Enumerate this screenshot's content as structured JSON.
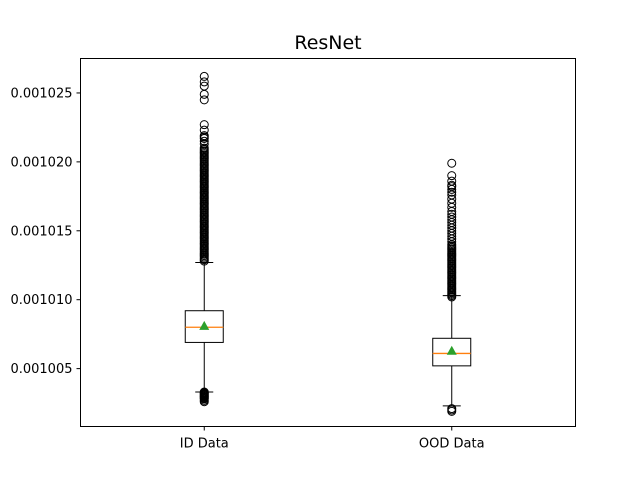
{
  "chart_data": {
    "type": "box",
    "title": "ResNet",
    "xlabel": "",
    "ylabel": "",
    "categories": [
      "ID Data",
      "OOD Data"
    ],
    "ylim": [
      0.0010008,
      0.0010275
    ],
    "yticks": [
      0.001005,
      0.00101,
      0.001015,
      0.00102,
      0.001025
    ],
    "ytick_labels": [
      "0.001005",
      "0.001010",
      "0.001015",
      "0.001020",
      "0.001025"
    ],
    "grid": false,
    "legend": "none",
    "colors": {
      "box": "#000000",
      "median": "#ff7f0e",
      "mean": "#2ca02c",
      "whisker": "#000000",
      "flier": "#000000"
    },
    "boxes": [
      {
        "label": "ID Data",
        "whisker_low": 0.0010033,
        "q1": 0.0010069,
        "median": 0.001008,
        "q3": 0.0010092,
        "whisker_high": 0.0010127,
        "mean": 0.0010081,
        "fliers_low": [
          0.0010033,
          0.00100325,
          0.0010032,
          0.00100315,
          0.0010031,
          0.00100305,
          0.001003,
          0.00100295,
          0.0010029,
          0.00100285,
          0.0010028,
          0.0010027,
          0.0010026
        ],
        "fliers_high": [
          0.0010128,
          0.0010129,
          0.001013,
          0.0010131,
          0.0010132,
          0.0010133,
          0.0010134,
          0.0010135,
          0.0010136,
          0.0010137,
          0.0010138,
          0.0010139,
          0.001014,
          0.0010141,
          0.0010142,
          0.0010143,
          0.0010144,
          0.0010145,
          0.0010146,
          0.0010147,
          0.0010148,
          0.0010149,
          0.001015,
          0.0010151,
          0.0010152,
          0.0010153,
          0.0010154,
          0.0010155,
          0.0010156,
          0.0010157,
          0.0010158,
          0.0010159,
          0.001016,
          0.0010161,
          0.0010162,
          0.0010163,
          0.0010164,
          0.0010165,
          0.0010166,
          0.0010167,
          0.0010168,
          0.0010169,
          0.001017,
          0.0010171,
          0.0010172,
          0.0010173,
          0.0010174,
          0.0010175,
          0.0010176,
          0.0010177,
          0.0010178,
          0.0010179,
          0.001018,
          0.0010181,
          0.0010182,
          0.0010183,
          0.0010184,
          0.0010185,
          0.0010186,
          0.0010187,
          0.0010188,
          0.0010189,
          0.001019,
          0.0010191,
          0.0010192,
          0.0010193,
          0.0010194,
          0.0010195,
          0.0010196,
          0.0010197,
          0.0010198,
          0.0010199,
          0.00102,
          0.0010201,
          0.0010202,
          0.0010203,
          0.0010204,
          0.0010205,
          0.0010206,
          0.0010207,
          0.0010208,
          0.0010209,
          0.001021,
          0.0010213,
          0.0010215,
          0.0010217,
          0.0010218,
          0.0010219,
          0.0010223,
          0.0010227,
          0.0010245,
          0.0010249,
          0.0010255,
          0.0010258,
          0.0010262
        ]
      },
      {
        "label": "OOD Data",
        "whisker_low": 0.0010023,
        "q1": 0.0010052,
        "median": 0.0010061,
        "q3": 0.0010072,
        "whisker_high": 0.0010103,
        "mean": 0.0010063,
        "fliers_low": [
          0.0010021,
          0.001002,
          0.0010019
        ],
        "fliers_high": [
          0.0010102,
          0.0010103,
          0.0010104,
          0.0010105,
          0.0010106,
          0.0010107,
          0.0010108,
          0.0010109,
          0.001011,
          0.0010111,
          0.0010112,
          0.0010113,
          0.0010114,
          0.0010115,
          0.0010116,
          0.0010117,
          0.0010118,
          0.0010119,
          0.001012,
          0.0010121,
          0.0010122,
          0.0010123,
          0.0010124,
          0.0010125,
          0.0010126,
          0.0010127,
          0.0010128,
          0.0010129,
          0.001013,
          0.0010131,
          0.0010132,
          0.0010133,
          0.0010134,
          0.0010135,
          0.0010136,
          0.0010137,
          0.0010138,
          0.0010139,
          0.001014,
          0.0010142,
          0.0010144,
          0.0010146,
          0.0010148,
          0.001015,
          0.0010152,
          0.0010154,
          0.0010156,
          0.0010158,
          0.001016,
          0.0010162,
          0.0010164,
          0.0010167,
          0.001017,
          0.0010173,
          0.0010176,
          0.0010178,
          0.001018,
          0.0010182,
          0.0010183,
          0.0010186,
          0.001019,
          0.0010199
        ]
      }
    ]
  }
}
